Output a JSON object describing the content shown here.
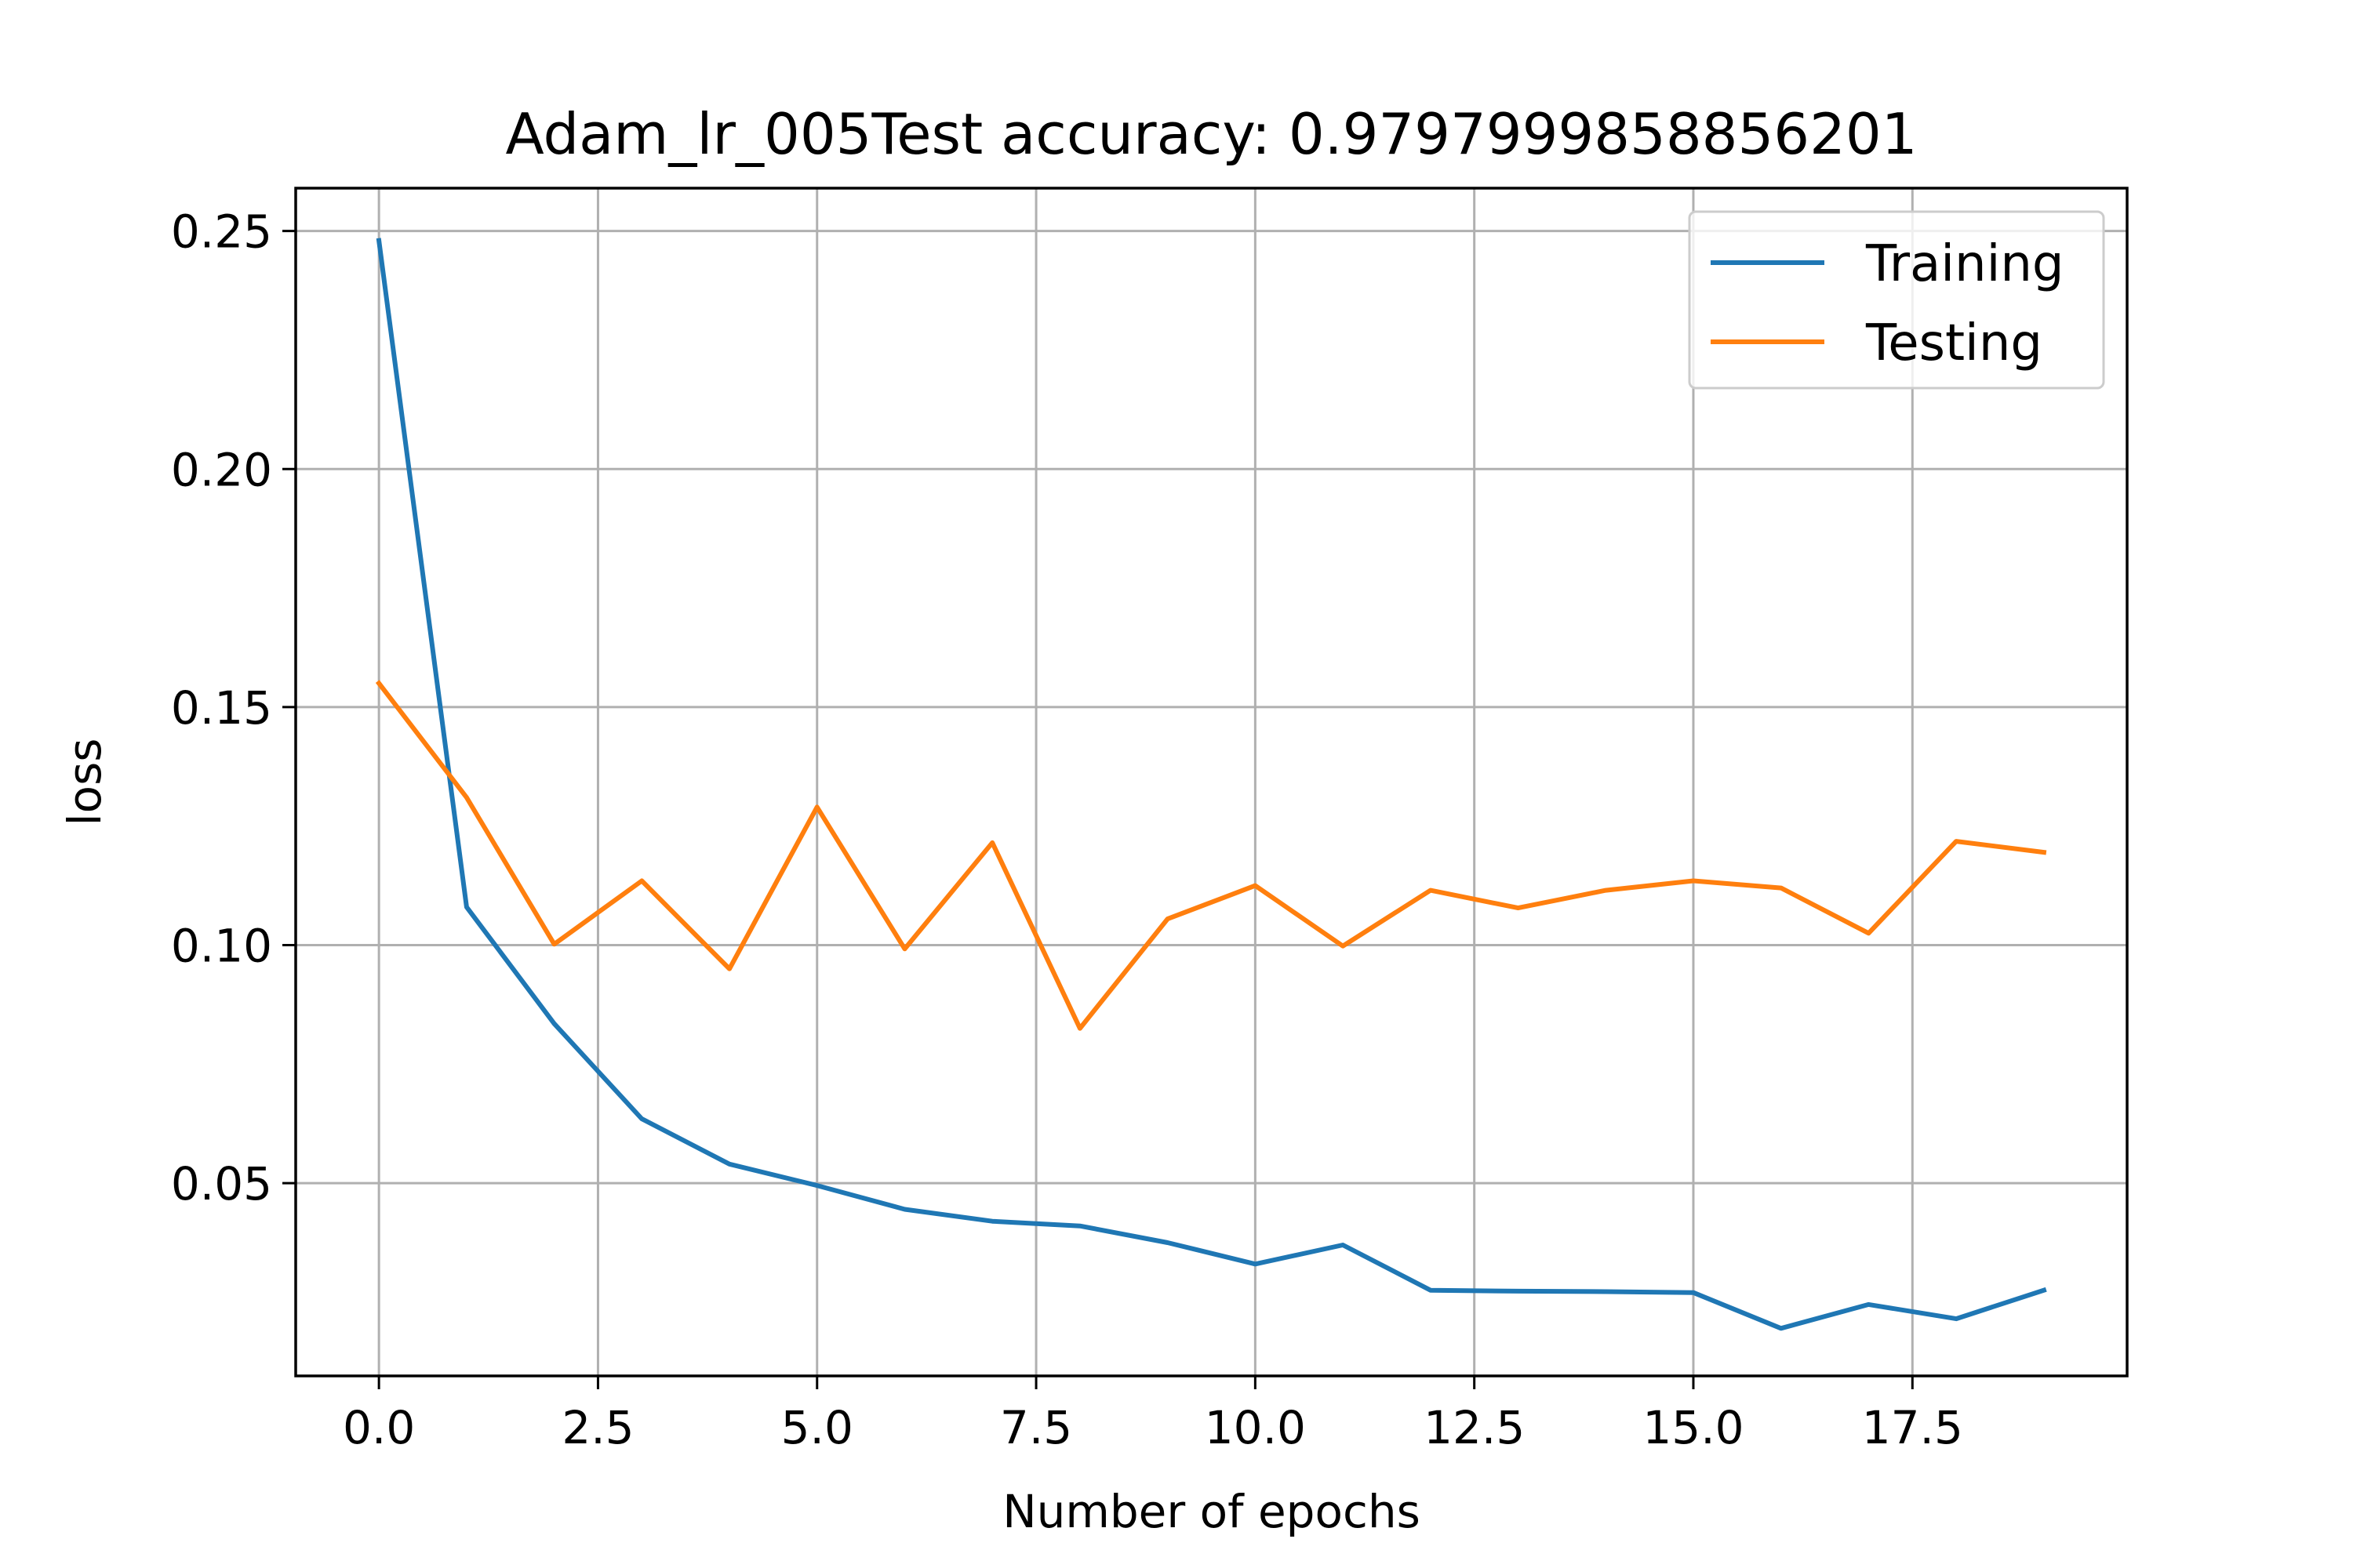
{
  "chart_data": {
    "type": "line",
    "title": "Adam_lr_005Test accuracy: 0.9797999858856201",
    "xlabel": "Number of epochs",
    "ylabel": "loss",
    "xlim": [
      -0.95,
      19.95
    ],
    "ylim": [
      0.0095,
      0.259
    ],
    "xticks": [
      0.0,
      2.5,
      5.0,
      7.5,
      10.0,
      12.5,
      15.0,
      17.5
    ],
    "xtick_labels": [
      "0.0",
      "2.5",
      "5.0",
      "7.5",
      "10.0",
      "12.5",
      "15.0",
      "17.5"
    ],
    "yticks": [
      0.05,
      0.1,
      0.15,
      0.2,
      0.25
    ],
    "ytick_labels": [
      "0.05",
      "0.10",
      "0.15",
      "0.20",
      "0.25"
    ],
    "grid": true,
    "legend_position": "top-right",
    "x": [
      0,
      1,
      2,
      3,
      4,
      5,
      6,
      7,
      8,
      9,
      10,
      11,
      12,
      13,
      14,
      15,
      16,
      17,
      18,
      19
    ],
    "series": [
      {
        "name": "Training",
        "color": "#1f77b4",
        "values": [
          0.248,
          0.108,
          0.0835,
          0.0635,
          0.054,
          0.0495,
          0.0445,
          0.042,
          0.041,
          0.0375,
          0.033,
          0.037,
          0.0275,
          0.0273,
          0.0272,
          0.027,
          0.0195,
          0.0245,
          0.0215,
          0.0275
        ]
      },
      {
        "name": "Testing",
        "color": "#ff7f0e",
        "values": [
          0.155,
          0.131,
          0.1002,
          0.1135,
          0.095,
          0.129,
          0.0992,
          0.1215,
          0.0825,
          0.1055,
          0.1125,
          0.0998,
          0.1115,
          0.1078,
          0.1115,
          0.1135,
          0.112,
          0.1025,
          0.1218,
          0.1195
        ]
      }
    ]
  }
}
